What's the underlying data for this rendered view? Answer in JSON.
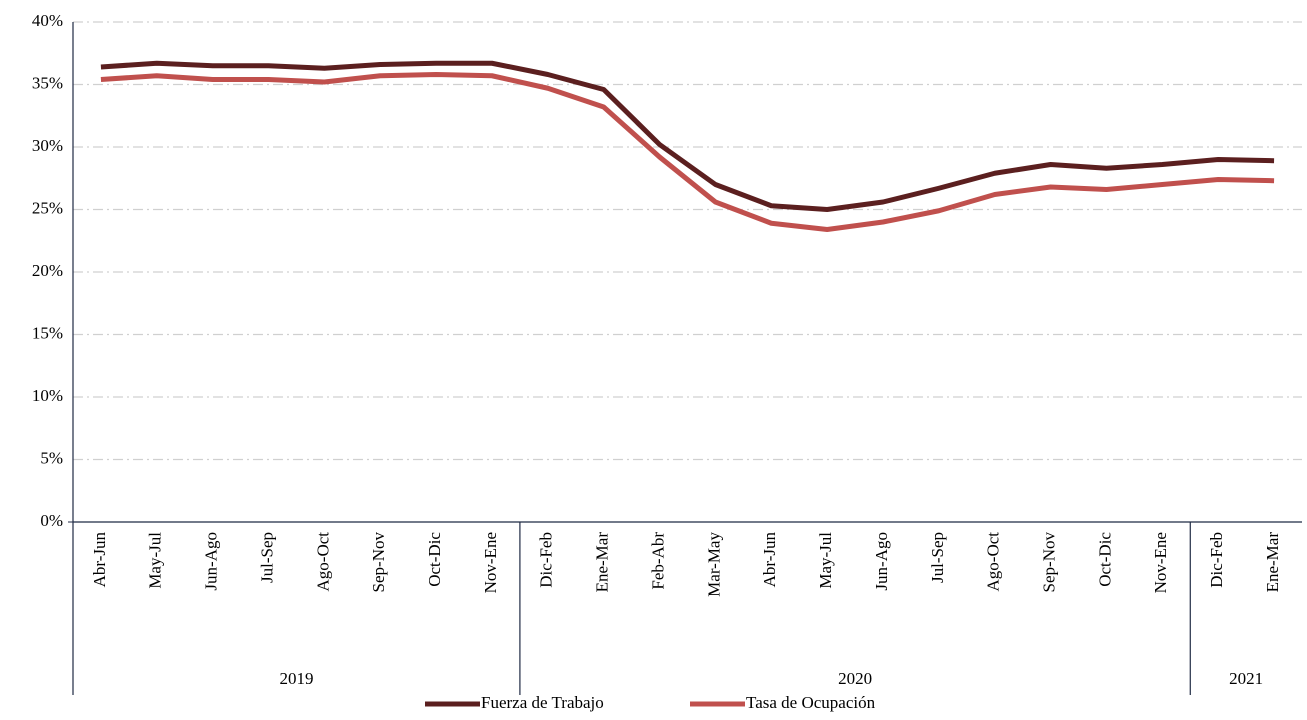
{
  "chart_data": {
    "type": "line",
    "categories": [
      "Abr-Jun",
      "May-Jul",
      "Jun-Ago",
      "Jul-Sep",
      "Ago-Oct",
      "Sep-Nov",
      "Oct-Dic",
      "Nov-Ene",
      "Dic-Feb",
      "Ene-Mar",
      "Feb-Abr",
      "Mar-May",
      "Abr-Jun",
      "May-Jul",
      "Jun-Ago",
      "Jul-Sep",
      "Ago-Oct",
      "Sep-Nov",
      "Oct-Dic",
      "Nov-Ene",
      "Dic-Feb",
      "Ene-Mar"
    ],
    "groups": [
      {
        "label": "2019",
        "span": 8
      },
      {
        "label": "2020",
        "span": 12
      },
      {
        "label": "2021",
        "span": 2
      }
    ],
    "series": [
      {
        "name": "Fuerza de Trabajo",
        "color": "#5b1f1f",
        "values": [
          36.4,
          36.7,
          36.5,
          36.5,
          36.3,
          36.6,
          36.7,
          36.7,
          35.8,
          34.6,
          30.2,
          27.0,
          25.3,
          25.0,
          25.6,
          26.7,
          27.9,
          28.6,
          28.3,
          28.6,
          29.0,
          28.9
        ]
      },
      {
        "name": "Tasa de Ocupación",
        "color": "#c0504d",
        "values": [
          35.4,
          35.7,
          35.4,
          35.4,
          35.2,
          35.7,
          35.8,
          35.7,
          34.7,
          33.2,
          29.2,
          25.6,
          23.9,
          23.4,
          24.0,
          24.9,
          26.2,
          26.8,
          26.6,
          27.0,
          27.4,
          27.3
        ]
      }
    ],
    "ylim": [
      0,
      40
    ],
    "yticks": [
      {
        "value": 0,
        "label": "0%"
      },
      {
        "value": 5,
        "label": "5%"
      },
      {
        "value": 10,
        "label": "10%"
      },
      {
        "value": 15,
        "label": "15%"
      },
      {
        "value": 20,
        "label": "20%"
      },
      {
        "value": 25,
        "label": "25%"
      },
      {
        "value": 30,
        "label": "30%"
      },
      {
        "value": 35,
        "label": "35%"
      },
      {
        "value": 40,
        "label": "40%"
      }
    ],
    "grid": true,
    "legend": "bottom"
  }
}
